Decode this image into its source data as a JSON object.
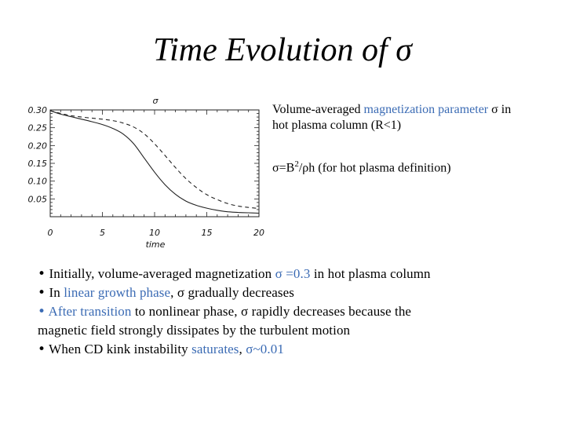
{
  "slide": {
    "title": "Time Evolution of σ"
  },
  "description": {
    "line1_pre": "Volume-averaged ",
    "line1_blue": "magnetization parameter",
    "line1_post": " σ in",
    "line2": "hot plasma column (R<1)",
    "def_pre": "σ=B",
    "def_sup": "2",
    "def_post": "/ρh (for hot plasma definition)"
  },
  "bullets": [
    {
      "bullet": "•",
      "parts": [
        {
          "text": " Initially, volume-averaged magnetization ",
          "blue": false
        },
        {
          "text": "σ =0.3",
          "blue": true
        },
        {
          "text": " in hot plasma column",
          "blue": false
        }
      ]
    },
    {
      "bullet": "•",
      "parts": [
        {
          "text": " In ",
          "blue": false
        },
        {
          "text": "linear growth phase",
          "blue": true
        },
        {
          "text": ", σ gradually decreases",
          "blue": false
        }
      ]
    },
    {
      "bullet": "•",
      "bullet_blue": true,
      "parts": [
        {
          "text": " After transition",
          "blue": true
        },
        {
          "text": " to nonlinear phase, σ rapidly decreases because the",
          "blue": false
        }
      ]
    },
    {
      "bullet": "",
      "parts": [
        {
          "text": "magnetic field strongly dissipates by the turbulent motion",
          "blue": false
        }
      ]
    },
    {
      "bullet": "•",
      "parts": [
        {
          "text": " When CD kink instability ",
          "blue": false
        },
        {
          "text": "saturates",
          "blue": true
        },
        {
          "text": ", ",
          "blue": false
        },
        {
          "text": "σ~0.01",
          "blue": true
        }
      ]
    }
  ],
  "chart_data": {
    "type": "line",
    "title": "σ",
    "xlabel": "time",
    "ylabel": "",
    "xlim": [
      0,
      20
    ],
    "ylim": [
      0,
      0.3
    ],
    "xticks": [
      0,
      5,
      10,
      15,
      20
    ],
    "yticks": [
      0.05,
      0.1,
      0.15,
      0.2,
      0.25,
      0.3
    ],
    "ytick_labels": [
      "0.05",
      "0.10",
      "0.15",
      "0.20",
      "0.25",
      "0.30"
    ],
    "series": [
      {
        "style": "solid",
        "x": [
          0,
          1,
          2,
          3,
          4,
          5,
          6,
          7,
          8,
          9,
          10,
          11,
          12,
          13,
          14,
          15,
          16,
          17,
          18,
          19,
          20
        ],
        "values": [
          0.298,
          0.288,
          0.281,
          0.274,
          0.267,
          0.259,
          0.248,
          0.232,
          0.205,
          0.165,
          0.125,
          0.09,
          0.063,
          0.044,
          0.032,
          0.024,
          0.018,
          0.014,
          0.012,
          0.011,
          0.01
        ]
      },
      {
        "style": "dashed",
        "x": [
          0,
          1,
          2,
          3,
          4,
          5,
          6,
          7,
          8,
          9,
          10,
          11,
          12,
          13,
          14,
          15,
          16,
          17,
          18,
          19,
          20
        ],
        "values": [
          0.298,
          0.29,
          0.284,
          0.28,
          0.277,
          0.274,
          0.27,
          0.263,
          0.252,
          0.233,
          0.205,
          0.172,
          0.138,
          0.107,
          0.082,
          0.062,
          0.048,
          0.037,
          0.03,
          0.026,
          0.023
        ]
      }
    ]
  }
}
